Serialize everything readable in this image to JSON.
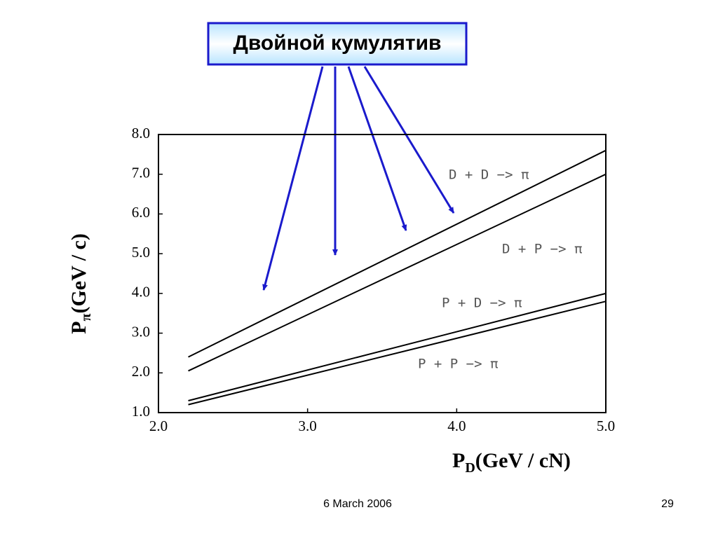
{
  "header": {
    "title": "Двойной кумулятив"
  },
  "chart_data": {
    "type": "line",
    "x_label": {
      "main": "P",
      "sub": "D",
      "unit": "(GeV / cN)"
    },
    "y_label": {
      "main": "P",
      "sub": "π",
      "unit": "(GeV / c)"
    },
    "x": [
      2.2,
      5.0
    ],
    "series": [
      {
        "name": "D + D −> π",
        "color": "#000000",
        "values": [
          2.4,
          7.6
        ]
      },
      {
        "name": "D + P −> π",
        "color": "#000000",
        "values": [
          2.05,
          7.0
        ]
      },
      {
        "name": "P + D −> π",
        "color": "#000000",
        "values": [
          1.3,
          4.0
        ]
      },
      {
        "name": "P + P −> π",
        "color": "#000000",
        "values": [
          1.2,
          3.8
        ]
      }
    ],
    "xlim": [
      2.0,
      5.0
    ],
    "xticks": [
      {
        "value": 2,
        "label": "2.0"
      },
      {
        "value": 3,
        "label": "3.0"
      },
      {
        "value": 4,
        "label": "4.0"
      },
      {
        "value": 5,
        "label": "5.0"
      }
    ],
    "ylim": [
      1.0,
      8.0
    ],
    "yticks": [
      {
        "value": 1,
        "label": "1.0"
      },
      {
        "value": 2,
        "label": "2.0"
      },
      {
        "value": 3,
        "label": "3.0"
      },
      {
        "value": 4,
        "label": "4.0"
      },
      {
        "value": 5,
        "label": "5.0"
      },
      {
        "value": 6,
        "label": "6.0"
      },
      {
        "value": 7,
        "label": "7.0"
      },
      {
        "value": 8,
        "label": "8.0"
      }
    ],
    "grid": false
  },
  "footer": {
    "date": "6 March 2006",
    "page": "29"
  }
}
